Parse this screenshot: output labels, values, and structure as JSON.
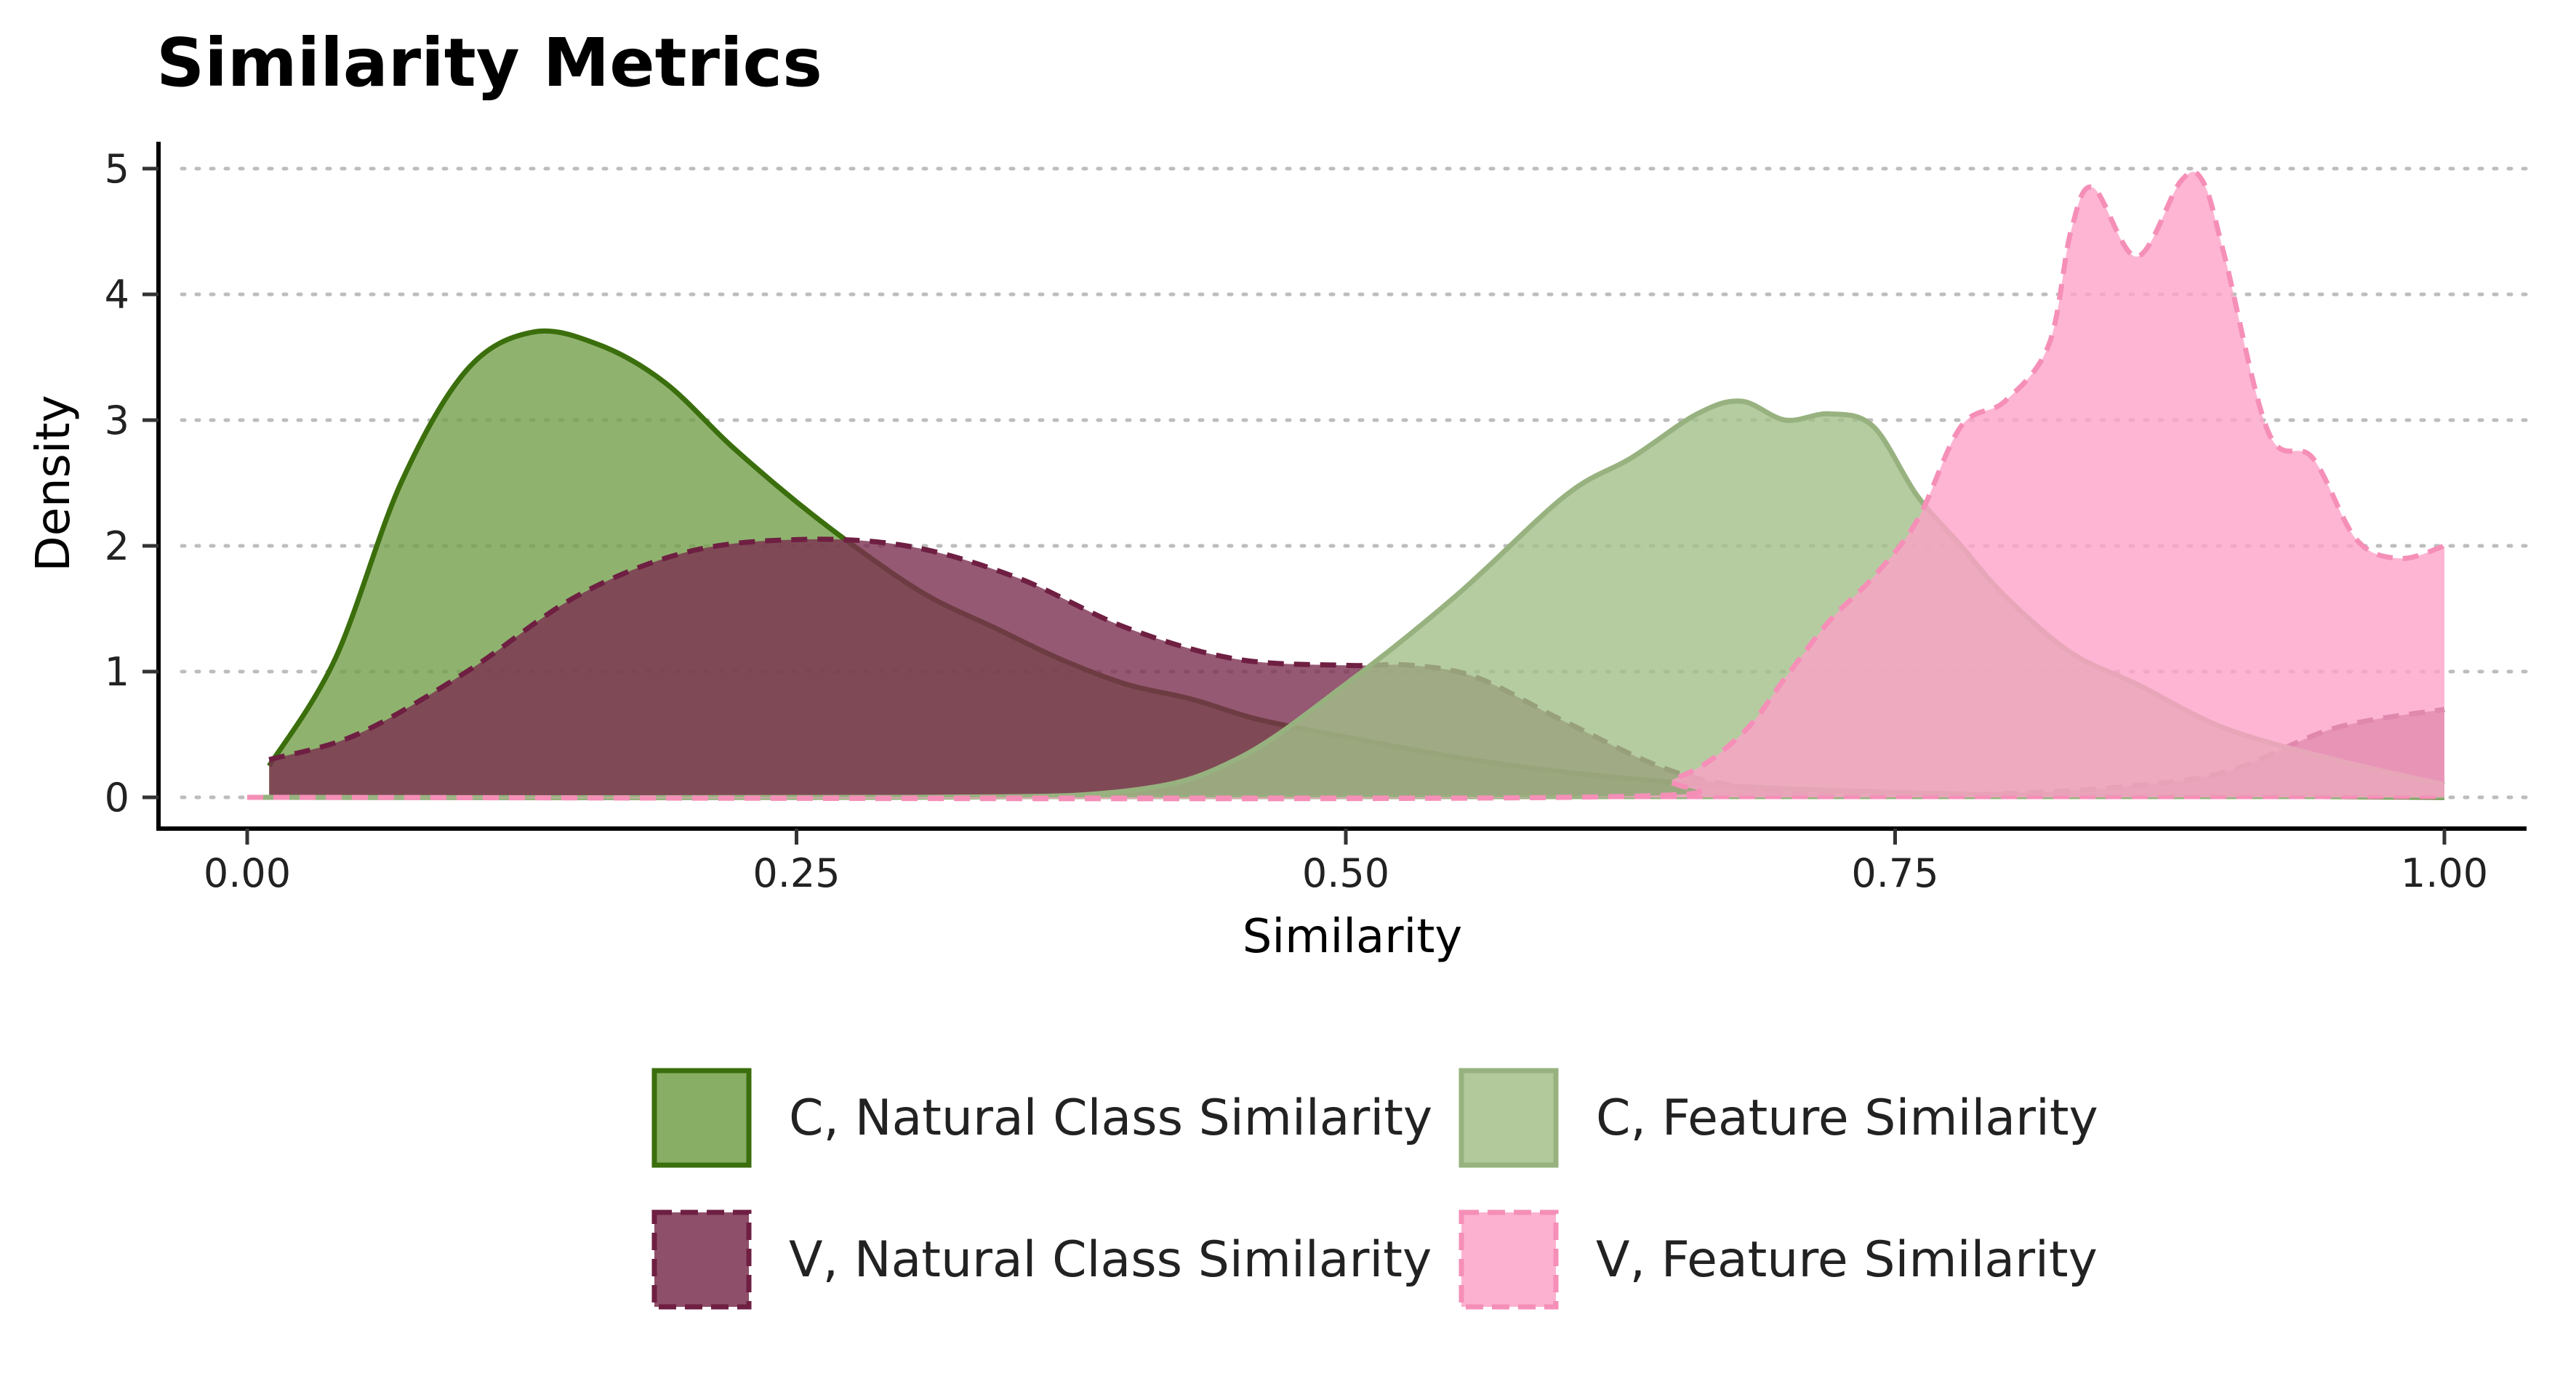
{
  "chart_data": {
    "type": "area",
    "title": "Similarity Metrics",
    "xlabel": "Similarity",
    "ylabel": "Density",
    "xlim": [
      -0.02,
      1.04
    ],
    "ylim": [
      -0.2,
      5.2
    ],
    "x_ticks": [
      0.0,
      0.25,
      0.5,
      0.75,
      1.0
    ],
    "x_tick_labels": [
      "0.00",
      "0.25",
      "0.50",
      "0.75",
      "1.00"
    ],
    "y_ticks": [
      0,
      1,
      2,
      3,
      4,
      5
    ],
    "y_tick_labels": [
      "0",
      "1",
      "2",
      "3",
      "4",
      "5"
    ],
    "grid": "horizontal-dotted",
    "legend_position": "bottom",
    "series": [
      {
        "name": "C, Natural Class Similarity",
        "fill": "#73a04a",
        "stroke": "#3b6e0c",
        "dashed": false,
        "x": [
          0.01,
          0.04,
          0.07,
          0.1,
          0.13,
          0.16,
          0.19,
          0.22,
          0.25,
          0.28,
          0.31,
          0.34,
          0.37,
          0.4,
          0.43,
          0.46,
          0.5,
          0.55,
          0.6,
          0.65,
          0.7,
          0.75,
          0.8,
          0.85,
          0.9,
          0.95,
          1.0
        ],
        "y": [
          0.25,
          1.1,
          2.5,
          3.4,
          3.7,
          3.6,
          3.3,
          2.8,
          2.35,
          1.95,
          1.6,
          1.35,
          1.1,
          0.9,
          0.78,
          0.62,
          0.48,
          0.32,
          0.2,
          0.12,
          0.07,
          0.04,
          0.02,
          0.01,
          0.01,
          0.005,
          0.0
        ]
      },
      {
        "name": "V, Natural Class Similarity",
        "fill": "#7a3050",
        "stroke": "#6e1f42",
        "dashed": true,
        "x": [
          0.01,
          0.05,
          0.1,
          0.15,
          0.2,
          0.25,
          0.3,
          0.35,
          0.4,
          0.45,
          0.5,
          0.53,
          0.56,
          0.6,
          0.65,
          0.7,
          0.75,
          0.8,
          0.85,
          0.9,
          0.95,
          1.0
        ],
        "y": [
          0.3,
          0.5,
          1.0,
          1.6,
          1.95,
          2.05,
          2.0,
          1.75,
          1.35,
          1.1,
          1.05,
          1.05,
          0.95,
          0.6,
          0.2,
          0.04,
          0.01,
          0.03,
          0.08,
          0.2,
          0.55,
          0.7
        ]
      },
      {
        "name": "C, Feature Similarity",
        "fill": "#a3bf89",
        "stroke": "#97b27f",
        "dashed": false,
        "x": [
          0.0,
          0.3,
          0.4,
          0.45,
          0.5,
          0.55,
          0.6,
          0.63,
          0.66,
          0.68,
          0.7,
          0.72,
          0.74,
          0.76,
          0.78,
          0.8,
          0.83,
          0.86,
          0.9,
          0.95,
          1.0
        ],
        "y": [
          0.0,
          0.0,
          0.05,
          0.3,
          0.9,
          1.6,
          2.4,
          2.7,
          3.05,
          3.15,
          3.0,
          3.05,
          2.95,
          2.4,
          2.0,
          1.6,
          1.15,
          0.9,
          0.55,
          0.3,
          0.1
        ]
      },
      {
        "name": "V, Feature Similarity",
        "fill": "#fda3c8",
        "stroke": "#f58fb8",
        "dashed": true,
        "x": [
          0.0,
          0.6,
          0.65,
          0.68,
          0.7,
          0.72,
          0.74,
          0.76,
          0.78,
          0.8,
          0.82,
          0.83,
          0.84,
          0.86,
          0.88,
          0.89,
          0.9,
          0.92,
          0.94,
          0.96,
          0.98,
          1.0
        ],
        "y": [
          0.0,
          0.0,
          0.15,
          0.5,
          0.95,
          1.4,
          1.75,
          2.2,
          2.95,
          3.15,
          3.6,
          4.5,
          4.85,
          4.3,
          4.9,
          4.9,
          4.3,
          2.9,
          2.7,
          2.05,
          1.9,
          2.0
        ]
      }
    ]
  }
}
